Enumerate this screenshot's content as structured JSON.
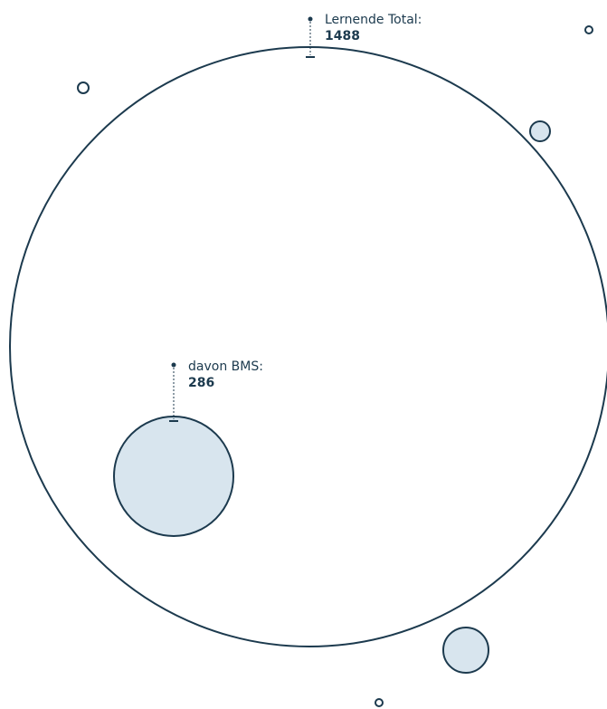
{
  "chart_data": {
    "type": "bubble",
    "title": "",
    "annotations": [
      {
        "label": "Lernende Total:",
        "value": "1488"
      },
      {
        "label": "davon BMS:",
        "value": "286"
      }
    ],
    "bubbles": [
      {
        "role": "total",
        "value": 1488
      },
      {
        "role": "subset",
        "value": 286
      }
    ]
  },
  "colors": {
    "stroke": "#1c3a4e",
    "fill_light": "#d8e5ee",
    "background": "#ffffff"
  }
}
